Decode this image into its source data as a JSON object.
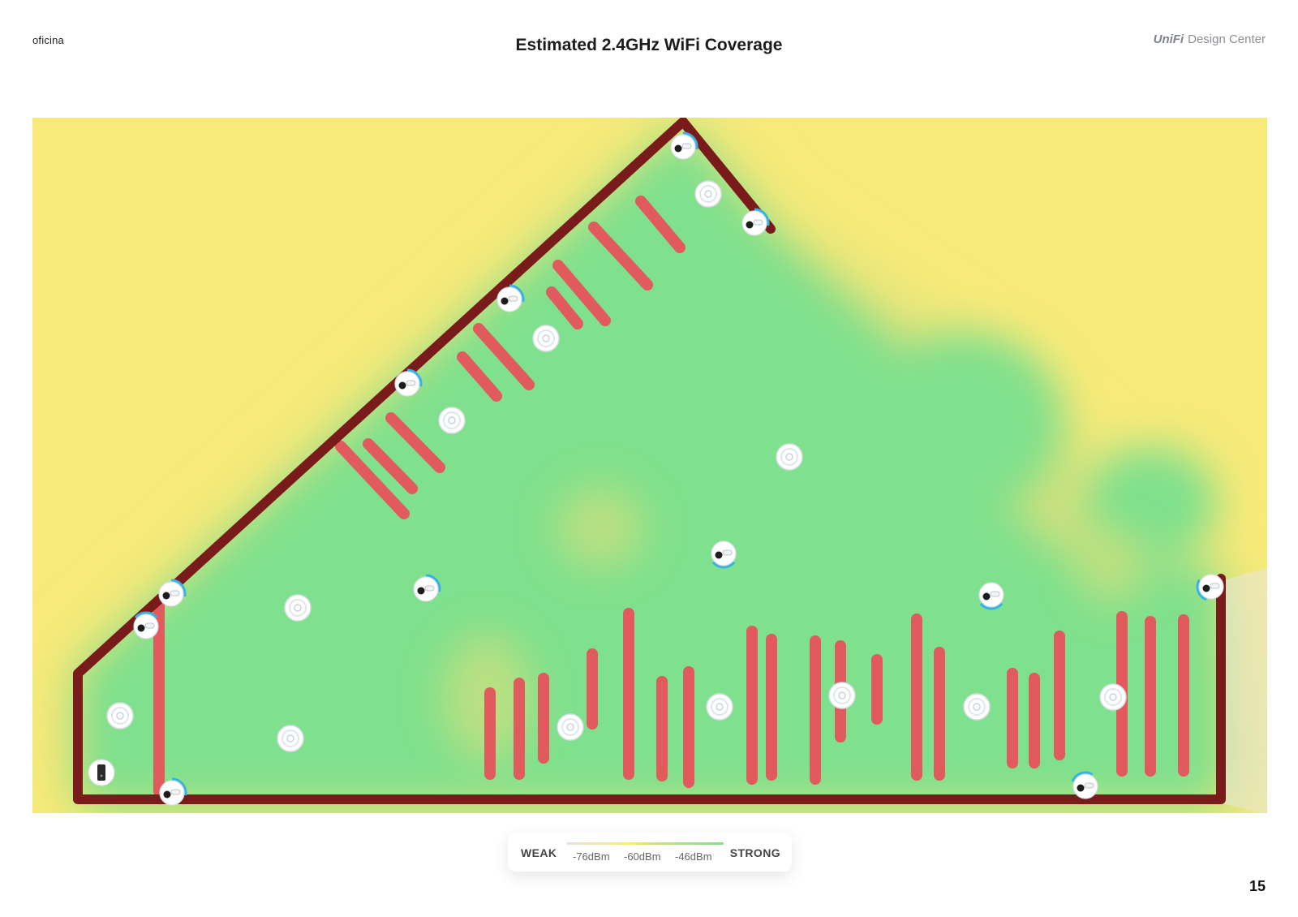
{
  "header": {
    "site_name": "oficina",
    "title": "Estimated 2.4GHz WiFi Coverage",
    "brand_logo": "UniFi",
    "brand_text": "Design Center"
  },
  "colors": {
    "weak": "#f7ea79",
    "mid": "#cfe07e",
    "strong": "#7fe08d",
    "wall": "#7a1b1b",
    "obstacle": "#e05a5e",
    "signal_arc": "#35b3e6"
  },
  "legend": {
    "weak_label": "WEAK",
    "strong_label": "STRONG",
    "ticks": [
      "-76dBm",
      "-60dBm",
      "-46dBm"
    ]
  },
  "map": {
    "device_types": [
      "access-point-icon",
      "camera-icon",
      "gateway-icon"
    ]
  },
  "footer": {
    "page_number": "15"
  }
}
